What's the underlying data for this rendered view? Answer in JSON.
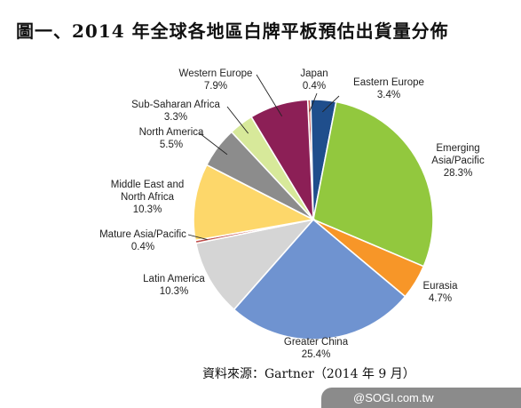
{
  "title": "圖一、2014 年全球各地區白牌平板預估出貨量分佈",
  "source": "資料來源：Gartner（2014 年 9 月）",
  "watermark": "@SOGI.com.tw",
  "chart_data": {
    "type": "pie",
    "slices": [
      {
        "name": "Japan",
        "label": "0.4%",
        "value": 0.4,
        "color": "#c0504d"
      },
      {
        "name": "Eastern Europe",
        "label": "3.4%",
        "value": 3.4,
        "color": "#1f4e8c"
      },
      {
        "name": "Emerging Asia/Pacific",
        "label": "28.3%",
        "value": 28.3,
        "color": "#92c83e"
      },
      {
        "name": "Eurasia",
        "label": "4.7%",
        "value": 4.7,
        "color": "#f79628"
      },
      {
        "name": "Greater China",
        "label": "25.4%",
        "value": 25.4,
        "color": "#6f93d0"
      },
      {
        "name": "Latin America",
        "label": "10.3%",
        "value": 10.3,
        "color": "#d5d5d5"
      },
      {
        "name": "Mature Asia/Pacific",
        "label": "0.4%",
        "value": 0.4,
        "color": "#c0504d"
      },
      {
        "name": "Middle East and North Africa",
        "label": "10.3%",
        "value": 10.3,
        "color": "#fdd76a"
      },
      {
        "name": "North America",
        "label": "5.5%",
        "value": 5.5,
        "color": "#8c8c8c"
      },
      {
        "name": "Sub-Saharan Africa",
        "label": "3.3%",
        "value": 3.3,
        "color": "#d7e99a"
      },
      {
        "name": "Western Europe",
        "label": "7.9%",
        "value": 7.9,
        "color": "#8c1f56"
      }
    ]
  }
}
